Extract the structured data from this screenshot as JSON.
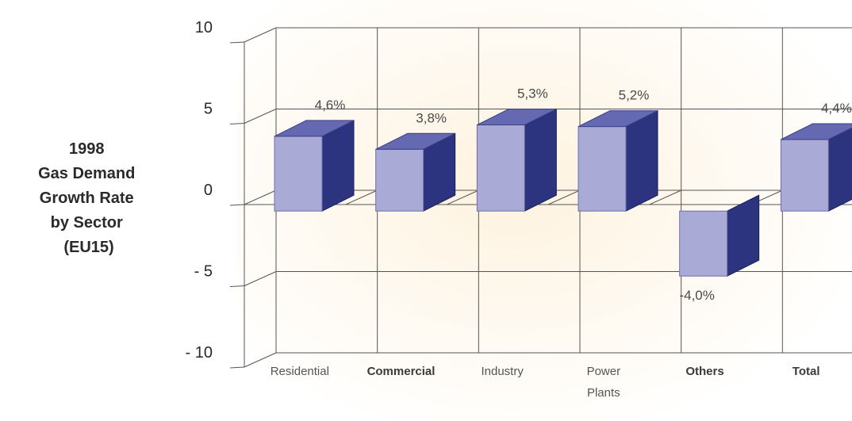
{
  "chart_data": {
    "type": "bar",
    "title_lines": [
      "1998",
      "Gas Demand",
      "Growth Rate",
      "by Sector",
      "(EU15)"
    ],
    "categories": [
      [
        "Residential"
      ],
      [
        "Commercial"
      ],
      [
        "Industry"
      ],
      [
        "Power",
        "Plants"
      ],
      [
        "Others"
      ],
      [
        "Total"
      ]
    ],
    "values": [
      4.6,
      3.8,
      5.3,
      5.2,
      -4.0,
      4.4
    ],
    "data_labels": [
      "4,6%",
      "3,8%",
      "5,3%",
      "5,2%",
      "-4,0%",
      "4,4%"
    ],
    "y_ticks": [
      "10",
      "5",
      "0",
      "- 5",
      "- 10"
    ],
    "ylim": [
      -10,
      10
    ],
    "grid": true,
    "bar_colors": {
      "front": "#a9aad6",
      "side": "#2d347f",
      "top": "#6569b1"
    }
  }
}
